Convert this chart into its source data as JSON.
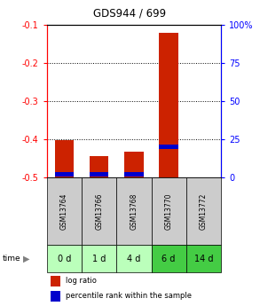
{
  "title": "GDS944 / 699",
  "samples": [
    "GSM13764",
    "GSM13766",
    "GSM13768",
    "GSM13770",
    "GSM13772"
  ],
  "time_labels": [
    "0 d",
    "1 d",
    "4 d",
    "6 d",
    "14 d"
  ],
  "log_ratio": [
    -0.403,
    -0.443,
    -0.433,
    -0.122,
    -0.5
  ],
  "percentile_rank": [
    2.0,
    2.0,
    2.0,
    20.0,
    0.0
  ],
  "ylim_left": [
    -0.5,
    -0.1
  ],
  "ylim_right": [
    0,
    100
  ],
  "yticks_left": [
    -0.5,
    -0.4,
    -0.3,
    -0.2,
    -0.1
  ],
  "yticks_right": [
    0,
    25,
    50,
    75,
    100
  ],
  "ytick_labels_left": [
    "-0.5",
    "-0.4",
    "-0.3",
    "-0.2",
    "-0.1"
  ],
  "ytick_labels_right": [
    "0",
    "25",
    "50",
    "75",
    "100%"
  ],
  "bar_width": 0.55,
  "red_color": "#cc2200",
  "blue_color": "#0000cc",
  "sample_bg": "#cccccc",
  "time_bg_light": "#bbffbb",
  "time_bg_dark": "#44cc44",
  "legend_red_label": "log ratio",
  "legend_blue_label": "percentile rank within the sample",
  "grid_yticks": [
    -0.4,
    -0.3,
    -0.2
  ]
}
